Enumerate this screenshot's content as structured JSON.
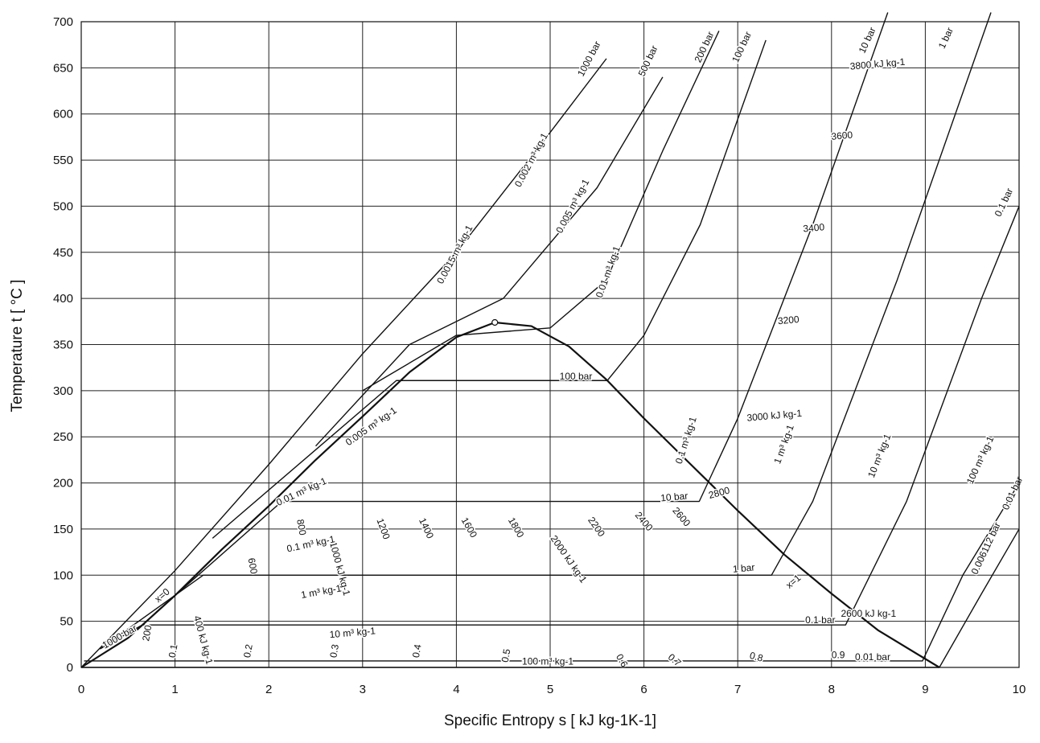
{
  "chart_data": {
    "type": "line",
    "title": "",
    "xlabel": "Specific Entropy  s  [ kJ kg-1K-1]",
    "ylabel": "Temperature  t  [ °C ]",
    "xlim": [
      0,
      10
    ],
    "ylim": [
      0,
      700
    ],
    "x_ticks": [
      "0",
      "1",
      "2",
      "3",
      "4",
      "5",
      "6",
      "7",
      "8",
      "9",
      "10"
    ],
    "y_ticks": [
      "0",
      "50",
      "100",
      "150",
      "200",
      "250",
      "300",
      "350",
      "400",
      "450",
      "500",
      "550",
      "600",
      "650",
      "700"
    ],
    "grid": true,
    "critical_point": {
      "s": 4.41,
      "t": 374
    },
    "saturation_dome": {
      "name": "",
      "liquid_x0": {
        "s": [
          0,
          0.5,
          1.0,
          1.5,
          2.0,
          2.5,
          3.0,
          3.5,
          4.0,
          4.41
        ],
        "t": [
          0,
          32,
          78,
          128,
          175,
          225,
          272,
          320,
          358,
          374
        ]
      },
      "vapor_x1": {
        "s": [
          4.41,
          4.8,
          5.2,
          5.6,
          6.0,
          6.5,
          7.0,
          7.5,
          8.0,
          8.5,
          9.15
        ],
        "t": [
          374,
          370,
          348,
          312,
          270,
          220,
          170,
          122,
          80,
          40,
          0
        ]
      }
    },
    "isobars_bar": [
      {
        "label": "1000 bar",
        "s": [
          0,
          1,
          2,
          3,
          4,
          5,
          5.6
        ],
        "t": [
          0,
          105,
          220,
          340,
          450,
          580,
          660
        ]
      },
      {
        "label": "500 bar",
        "s": [
          2.5,
          3.5,
          4.5,
          5.5,
          6.2
        ],
        "t": [
          240,
          350,
          400,
          520,
          640
        ]
      },
      {
        "label": "200 bar",
        "s": [
          3.0,
          4.0,
          5.0,
          5.6,
          6.2,
          6.8
        ],
        "t": [
          300,
          360,
          368,
          420,
          560,
          690
        ]
      },
      {
        "label": "100 bar",
        "s": [
          1.4,
          3.36,
          5.61,
          6.0,
          6.6,
          7.3
        ],
        "t": [
          140,
          311,
          311,
          360,
          480,
          680
        ]
      },
      {
        "label": "10 bar",
        "s": [
          0.8,
          2.14,
          6.59,
          7.0,
          7.8,
          8.6
        ],
        "t": [
          60,
          180,
          180,
          270,
          480,
          710
        ]
      },
      {
        "label": "1 bar",
        "s": [
          0.2,
          1.3,
          7.36,
          7.8,
          8.7,
          9.7
        ],
        "t": [
          20,
          100,
          100,
          180,
          420,
          710
        ]
      },
      {
        "label": "0.1 bar",
        "s": [
          0.2,
          0.65,
          8.15,
          8.8,
          9.6,
          10.0
        ],
        "t": [
          20,
          46,
          46,
          180,
          400,
          500
        ]
      },
      {
        "label": "0.01 bar",
        "s": [
          0.03,
          8.97,
          9.4,
          10.0
        ],
        "t": [
          7,
          7,
          100,
          200
        ]
      },
      {
        "label": "0.006112 bar",
        "s": [
          0,
          9.15,
          9.6,
          10.0
        ],
        "t": [
          0,
          0,
          80,
          150
        ]
      }
    ],
    "enthalpy_lines": [
      "400 kJ kg-1",
      "600",
      "800",
      "1000 kJ kg-1",
      "1200",
      "1400",
      "1600",
      "1800",
      "2000 kJ kg-1",
      "2200",
      "2400",
      "2600",
      "2800",
      "2600 kJ kg-1",
      "3000 kJ kg-1",
      "3200",
      "3400",
      "3600",
      "3800 kJ kg-1",
      "200"
    ],
    "quality_lines": [
      "x=0",
      "0.1",
      "0.2",
      "0.3",
      "0.4",
      "0.5",
      "0.6",
      "0.7",
      "0.8",
      "0.9",
      "x=1"
    ],
    "specific_volume_lines": [
      "0.0015 m³ kg-1",
      "0.002 m³ kg-1",
      "0.005 m³ kg-1",
      "0.01 m³ kg-1",
      "0.005 m³ kg-1",
      "0.01 m³ kg-1",
      "0.1 m³ kg-1",
      "0.1 m³ kg-1",
      "1 m³ kg-1",
      "1 m³ kg-1",
      "10 m³ kg-1",
      "10 m³ kg-1",
      "100 m³ kg-1",
      "100 m³ kg-1"
    ],
    "labels": [
      {
        "text": "1000 bar",
        "s": 0.25,
        "t": 20,
        "angle": -30
      },
      {
        "text": "x=0",
        "s": 0.82,
        "t": 70,
        "angle": -40
      },
      {
        "text": "200",
        "s": 0.72,
        "t": 28,
        "angle": -80
      },
      {
        "text": "0.1",
        "s": 1.0,
        "t": 10,
        "angle": -80
      },
      {
        "text": "400 kJ kg-1",
        "s": 1.2,
        "t": 55,
        "angle": 75
      },
      {
        "text": "0.2",
        "s": 1.8,
        "t": 10,
        "angle": -80
      },
      {
        "text": "600",
        "s": 1.78,
        "t": 118,
        "angle": 80
      },
      {
        "text": "800",
        "s": 2.3,
        "t": 160,
        "angle": 80
      },
      {
        "text": "0.01 m³ kg-1",
        "s": 2.1,
        "t": 175,
        "angle": -25
      },
      {
        "text": "0.005 m³ kg-1",
        "s": 2.85,
        "t": 240,
        "angle": -35
      },
      {
        "text": "1000 kJ kg-1",
        "s": 2.65,
        "t": 135,
        "angle": 75
      },
      {
        "text": "0.1 m³ kg-1",
        "s": 2.2,
        "t": 125,
        "angle": -12
      },
      {
        "text": "1200",
        "s": 3.15,
        "t": 160,
        "angle": 70
      },
      {
        "text": "1400",
        "s": 3.6,
        "t": 160,
        "angle": 65
      },
      {
        "text": "1600",
        "s": 4.05,
        "t": 160,
        "angle": 60
      },
      {
        "text": "1800",
        "s": 4.55,
        "t": 160,
        "angle": 60
      },
      {
        "text": "2000 kJ kg-1",
        "s": 5.0,
        "t": 140,
        "angle": 55
      },
      {
        "text": "2200",
        "s": 5.4,
        "t": 160,
        "angle": 55
      },
      {
        "text": "2400",
        "s": 5.9,
        "t": 165,
        "angle": 50
      },
      {
        "text": "2600",
        "s": 6.3,
        "t": 170,
        "angle": 50
      },
      {
        "text": "0.3",
        "s": 2.72,
        "t": 10,
        "angle": -80
      },
      {
        "text": "0.4",
        "s": 3.6,
        "t": 10,
        "angle": -80
      },
      {
        "text": "0.5",
        "s": 4.55,
        "t": 5,
        "angle": -80
      },
      {
        "text": "0.6",
        "s": 5.7,
        "t": 12,
        "angle": 60
      },
      {
        "text": "0.7",
        "s": 6.25,
        "t": 10,
        "angle": 40
      },
      {
        "text": "0.8",
        "s": 7.12,
        "t": 10,
        "angle": 15
      },
      {
        "text": "0.9",
        "s": 8.0,
        "t": 10,
        "angle": 0
      },
      {
        "text": "1 m³ kg-1",
        "s": 2.35,
        "t": 75,
        "angle": -10
      },
      {
        "text": "10 m³ kg-1",
        "s": 2.65,
        "t": 32,
        "angle": -5
      },
      {
        "text": "100 m³ kg-1",
        "s": 4.7,
        "t": 3,
        "angle": 0
      },
      {
        "text": "0.01 bar",
        "s": 8.25,
        "t": 8,
        "angle": 0
      },
      {
        "text": "0.1 bar",
        "s": 7.72,
        "t": 48,
        "angle": 0
      },
      {
        "text": "2600 kJ kg-1",
        "s": 8.1,
        "t": 55,
        "angle": 0
      },
      {
        "text": "1 bar",
        "s": 6.95,
        "t": 103,
        "angle": -5
      },
      {
        "text": "x=1",
        "s": 7.55,
        "t": 85,
        "angle": -40
      },
      {
        "text": "10 bar",
        "s": 6.18,
        "t": 180,
        "angle": -5
      },
      {
        "text": "2800",
        "s": 6.7,
        "t": 183,
        "angle": -15
      },
      {
        "text": "100 bar",
        "s": 5.1,
        "t": 312,
        "angle": 0
      },
      {
        "text": "3000 kJ kg-1",
        "s": 7.1,
        "t": 267,
        "angle": -5
      },
      {
        "text": "0.1 m³ kg-1",
        "s": 6.4,
        "t": 220,
        "angle": -72
      },
      {
        "text": "1 m³ kg-1",
        "s": 7.45,
        "t": 220,
        "angle": -70
      },
      {
        "text": "10 m³ kg-1",
        "s": 8.45,
        "t": 205,
        "angle": -68
      },
      {
        "text": "100 m³ kg-1",
        "s": 9.5,
        "t": 198,
        "angle": -65
      },
      {
        "text": "0.01 bar",
        "s": 9.88,
        "t": 170,
        "angle": -65
      },
      {
        "text": "0.006112 bar",
        "s": 9.55,
        "t": 100,
        "angle": -65
      },
      {
        "text": "3200",
        "s": 7.43,
        "t": 372,
        "angle": -5
      },
      {
        "text": "3400",
        "s": 7.7,
        "t": 472,
        "angle": -5
      },
      {
        "text": "3600",
        "s": 8.0,
        "t": 572,
        "angle": -5
      },
      {
        "text": "3800 kJ kg-1",
        "s": 8.2,
        "t": 648,
        "angle": -5
      },
      {
        "text": "0.1 bar",
        "s": 9.8,
        "t": 488,
        "angle": -65
      },
      {
        "text": "1 bar",
        "s": 9.2,
        "t": 670,
        "angle": -65
      },
      {
        "text": "10 bar",
        "s": 8.35,
        "t": 665,
        "angle": -65
      },
      {
        "text": "100 bar",
        "s": 7.0,
        "t": 655,
        "angle": -65
      },
      {
        "text": "200 bar",
        "s": 6.6,
        "t": 655,
        "angle": -65
      },
      {
        "text": "500 bar",
        "s": 6.0,
        "t": 640,
        "angle": -65
      },
      {
        "text": "1000 bar",
        "s": 5.35,
        "t": 640,
        "angle": -62
      },
      {
        "text": "0.0015 m³ kg-1",
        "s": 3.85,
        "t": 415,
        "angle": -62
      },
      {
        "text": "0.002 m³ kg-1",
        "s": 4.68,
        "t": 520,
        "angle": -62
      },
      {
        "text": "0.005 m³ kg-1",
        "s": 5.12,
        "t": 470,
        "angle": -62
      },
      {
        "text": "0.01 m³ kg-1",
        "s": 5.55,
        "t": 400,
        "angle": -70
      }
    ]
  }
}
